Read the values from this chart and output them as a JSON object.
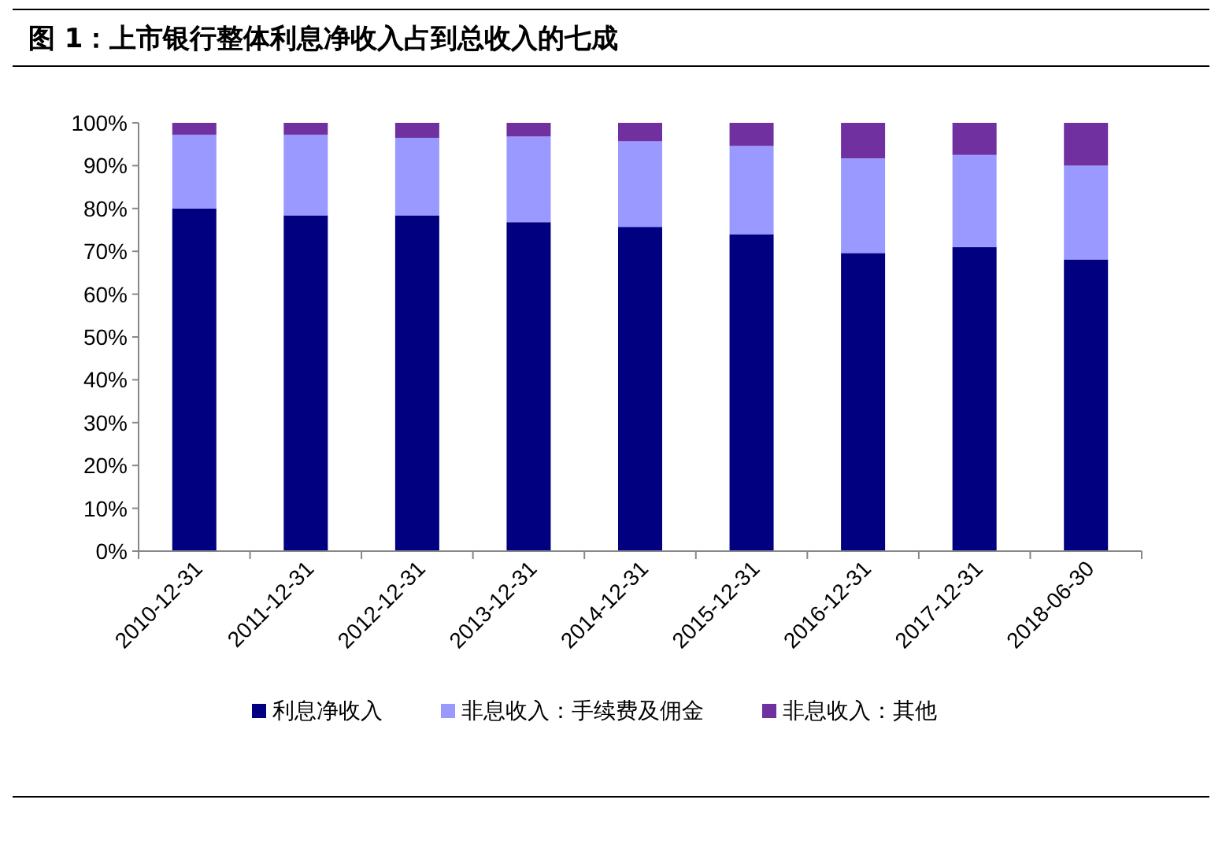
{
  "chart_data": {
    "type": "bar",
    "title": "图 1：上市银行整体利息净收入占到总收入的七成",
    "stacked": true,
    "legend": "bottom",
    "grid": false,
    "categories": [
      "2010-12-31",
      "2011-12-31",
      "2012-12-31",
      "2013-12-31",
      "2014-12-31",
      "2015-12-31",
      "2016-12-31",
      "2017-12-31",
      "2018-06-30"
    ],
    "ylim": [
      0,
      100
    ],
    "yticks": [
      {
        "value": 0,
        "label": "0%"
      },
      {
        "value": 10,
        "label": "10%"
      },
      {
        "value": 20,
        "label": "20%"
      },
      {
        "value": 30,
        "label": "30%"
      },
      {
        "value": 40,
        "label": "40%"
      },
      {
        "value": 50,
        "label": "50%"
      },
      {
        "value": 60,
        "label": "60%"
      },
      {
        "value": 70,
        "label": "70%"
      },
      {
        "value": 80,
        "label": "80%"
      },
      {
        "value": 90,
        "label": "90%"
      },
      {
        "value": 100,
        "label": "100%"
      }
    ],
    "series": [
      {
        "name": "利息净收入",
        "color": "#000080",
        "values": [
          80,
          78.4,
          78.4,
          76.8,
          75.7,
          74,
          69.6,
          71,
          68.1
        ]
      },
      {
        "name": "非息收入：手续费及佣金",
        "color": "#9999ff",
        "values": [
          17.2,
          18.8,
          18.1,
          20,
          20,
          20.6,
          22.1,
          21.5,
          21.9
        ]
      },
      {
        "name": "非息收入：其他",
        "color": "#7030a0",
        "values": [
          2.8,
          2.8,
          3.5,
          3.2,
          4.3,
          5.4,
          8.3,
          7.5,
          10
        ]
      }
    ]
  }
}
